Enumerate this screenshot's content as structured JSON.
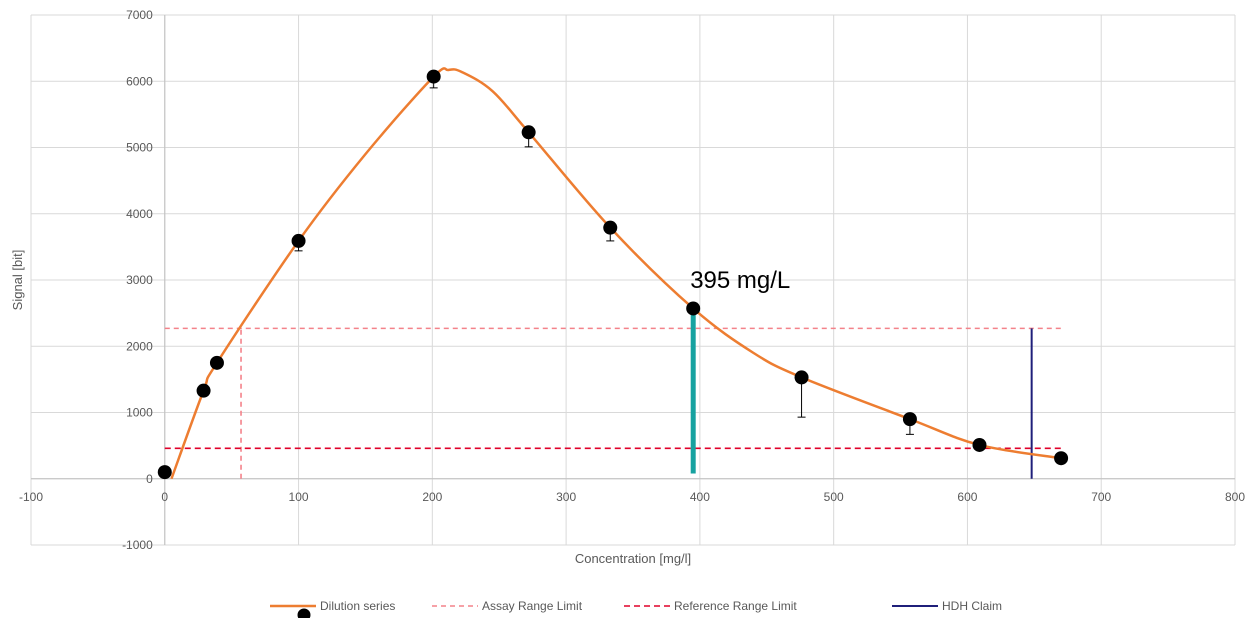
{
  "chart_data": {
    "type": "scatter",
    "title": "",
    "xlabel": "Concentration [mg/l]",
    "ylabel": "Signal [bit]",
    "xlim": [
      -100,
      800
    ],
    "ylim": [
      -1000,
      7000
    ],
    "x_ticks": [
      -100,
      0,
      100,
      200,
      300,
      400,
      500,
      600,
      700,
      800
    ],
    "y_ticks": [
      -1000,
      0,
      1000,
      2000,
      3000,
      4000,
      5000,
      6000,
      7000
    ],
    "grid": true,
    "legend_position": "bottom",
    "series": [
      {
        "name": "Dilution series",
        "kind": "points-with-smooth-line",
        "color": "#ED7D31",
        "marker_color": "#000000",
        "points": [
          {
            "x": 0,
            "y": 100,
            "err": 0
          },
          {
            "x": 29,
            "y": 1330,
            "err": 0
          },
          {
            "x": 39,
            "y": 1750,
            "err": 0
          },
          {
            "x": 100,
            "y": 3590,
            "err": 150
          },
          {
            "x": 201,
            "y": 6070,
            "err": 170
          },
          {
            "x": 272,
            "y": 5230,
            "err": 220
          },
          {
            "x": 333,
            "y": 3790,
            "err": 200
          },
          {
            "x": 395,
            "y": 2570,
            "err": 0
          },
          {
            "x": 476,
            "y": 1530,
            "err": 600
          },
          {
            "x": 557,
            "y": 900,
            "err": 230
          },
          {
            "x": 609,
            "y": 510,
            "err": 0
          },
          {
            "x": 670,
            "y": 310,
            "err": 0
          }
        ],
        "curve": [
          [
            5,
            0
          ],
          [
            29,
            1330
          ],
          [
            39,
            1750
          ],
          [
            100,
            3590
          ],
          [
            150,
            4900
          ],
          [
            201,
            6070
          ],
          [
            212,
            6170
          ],
          [
            222,
            6140
          ],
          [
            245,
            5850
          ],
          [
            272,
            5230
          ],
          [
            333,
            3790
          ],
          [
            395,
            2570
          ],
          [
            440,
            1900
          ],
          [
            476,
            1530
          ],
          [
            557,
            900
          ],
          [
            609,
            510
          ],
          [
            670,
            310
          ]
        ]
      },
      {
        "name": "Assay Range Limit",
        "kind": "dashed",
        "color": "#F4828A",
        "segments": [
          {
            "x1": 0,
            "y1": 2270,
            "x2": 670,
            "y2": 2270
          },
          {
            "x1": 57,
            "y1": 0,
            "x2": 57,
            "y2": 2270
          }
        ]
      },
      {
        "name": "Reference Range Limit",
        "kind": "dashed",
        "color": "#E0002A",
        "segments": [
          {
            "x1": 0,
            "y1": 460,
            "x2": 670,
            "y2": 460
          }
        ]
      },
      {
        "name": "HDH Claim",
        "kind": "solid",
        "color": "#1F1F7A",
        "segments": [
          {
            "x1": 648,
            "y1": 0,
            "x2": 648,
            "y2": 2270
          }
        ]
      }
    ],
    "highlight": {
      "x": 395,
      "y1": 80,
      "y2": 2570,
      "color": "#17A2A0"
    },
    "annotation": {
      "text": "395 mg/L",
      "x": 395,
      "y": 3000
    }
  }
}
